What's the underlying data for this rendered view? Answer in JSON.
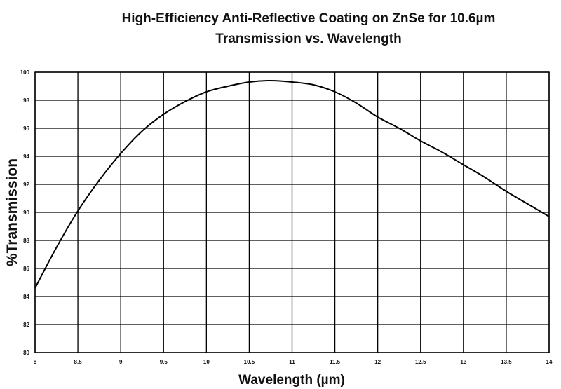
{
  "chart_data": {
    "type": "line",
    "title": "High-Efficiency Anti-Reflective Coating on ZnSe for 10.6µm",
    "subtitle": "Transmission vs. Wavelength",
    "xlabel": "Wavelength (µm)",
    "ylabel": "%Transmission",
    "xlim": [
      8,
      14
    ],
    "ylim": [
      80,
      100
    ],
    "x_ticks": [
      "8",
      "8.5",
      "9",
      "9.5",
      "10",
      "10.5",
      "11",
      "11.5",
      "12",
      "12.5",
      "13",
      "13.5",
      "14"
    ],
    "y_ticks": [
      "80",
      "82",
      "84",
      "86",
      "88",
      "90",
      "92",
      "94",
      "96",
      "98",
      "100"
    ],
    "grid": true,
    "legend": "none",
    "series": [
      {
        "color": "#000000",
        "x": [
          8.0,
          8.25,
          8.5,
          8.75,
          9.0,
          9.25,
          9.5,
          9.75,
          10.0,
          10.25,
          10.5,
          10.75,
          11.0,
          11.25,
          11.5,
          11.75,
          12.0,
          12.25,
          12.5,
          12.75,
          13.0,
          13.25,
          13.5,
          13.75,
          14.0
        ],
        "y": [
          84.6,
          87.5,
          90.1,
          92.3,
          94.2,
          95.8,
          97.0,
          97.9,
          98.6,
          99.0,
          99.3,
          99.4,
          99.3,
          99.1,
          98.6,
          97.8,
          96.8,
          96.0,
          95.1,
          94.3,
          93.4,
          92.5,
          91.5,
          90.6,
          89.7
        ]
      }
    ]
  }
}
